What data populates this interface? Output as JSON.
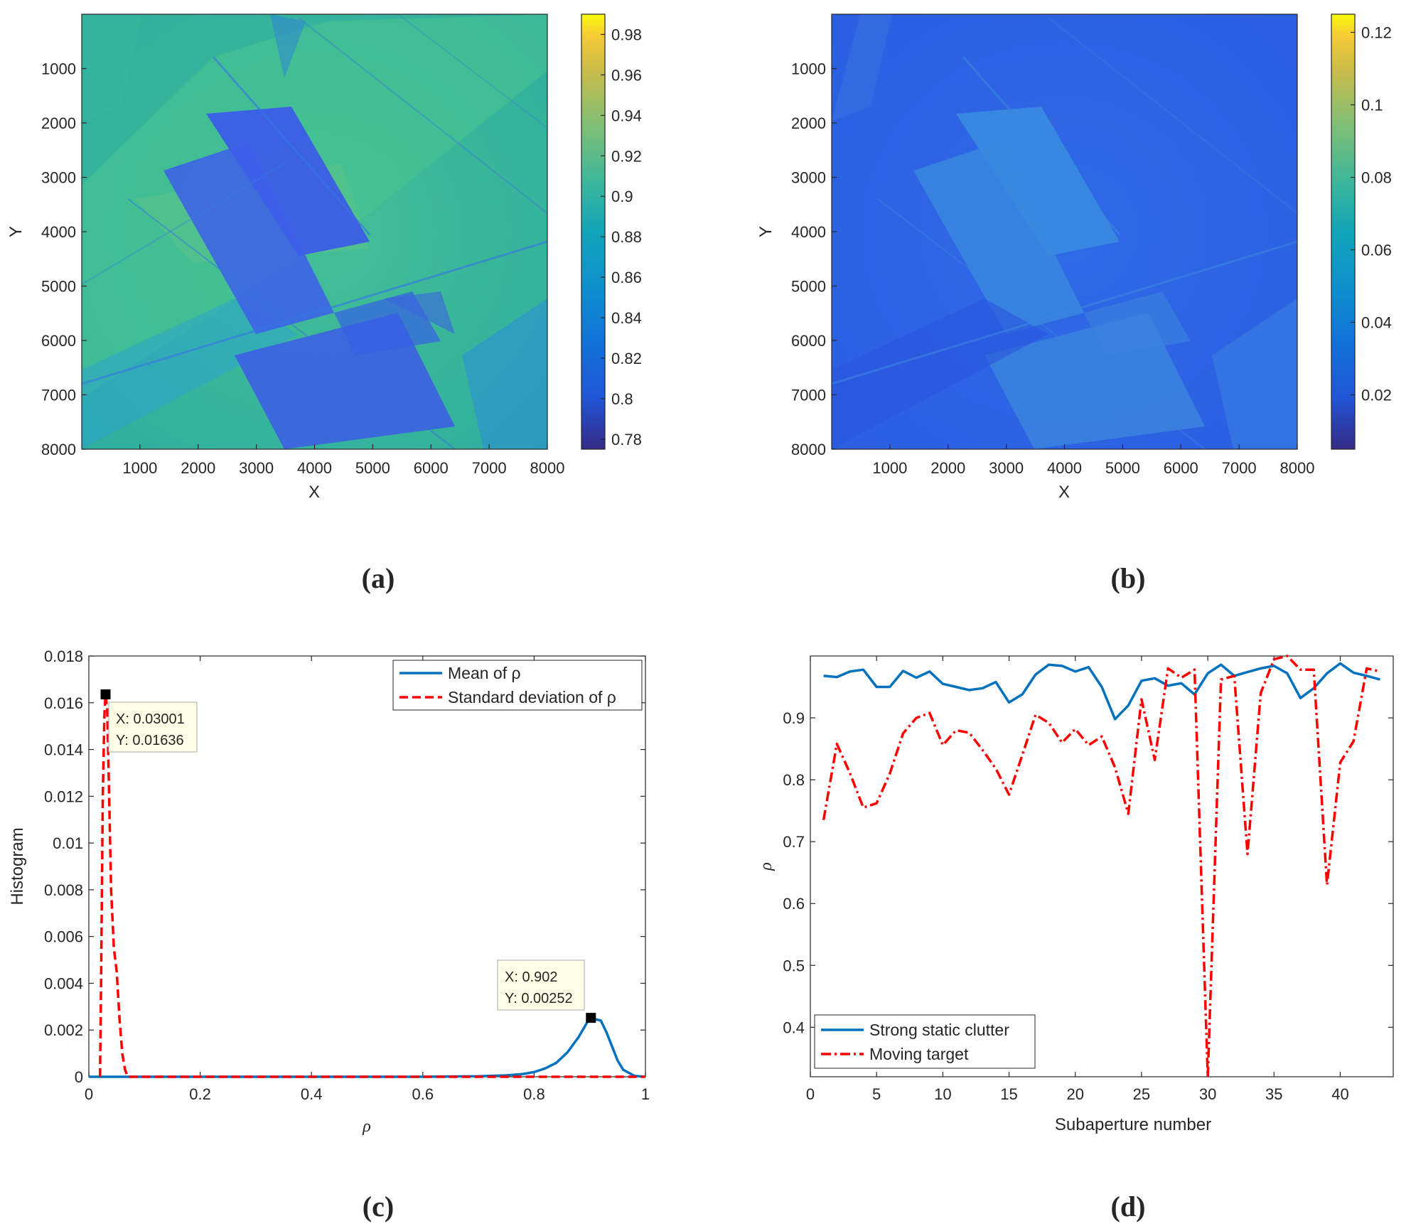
{
  "chart_data": [
    {
      "panel": "a",
      "type": "heatmap",
      "caption": "(a)",
      "xlabel": "X",
      "ylabel": "Y",
      "xlim": [
        0,
        8000
      ],
      "ylim": [
        0,
        8000
      ],
      "x_ticks": [
        "1000",
        "2000",
        "3000",
        "4000",
        "5000",
        "6000",
        "7000",
        "8000"
      ],
      "y_ticks": [
        "1000",
        "2000",
        "3000",
        "4000",
        "5000",
        "6000",
        "7000",
        "8000"
      ],
      "colorbar": {
        "range": [
          0.775,
          0.99
        ],
        "ticks": [
          "0.78",
          "0.8",
          "0.82",
          "0.84",
          "0.86",
          "0.88",
          "0.9",
          "0.92",
          "0.94",
          "0.96",
          "0.98"
        ],
        "tick_values": [
          0.78,
          0.8,
          0.82,
          0.84,
          0.86,
          0.88,
          0.9,
          0.92,
          0.94,
          0.96,
          0.98
        ]
      },
      "dominant_color": "#3fbf9a",
      "field_color": "#3a5ee8"
    },
    {
      "panel": "b",
      "type": "heatmap",
      "caption": "(b)",
      "xlabel": "X",
      "ylabel": "Y",
      "xlim": [
        0,
        8000
      ],
      "ylim": [
        0,
        8000
      ],
      "x_ticks": [
        "1000",
        "2000",
        "3000",
        "4000",
        "5000",
        "6000",
        "7000",
        "8000"
      ],
      "y_ticks": [
        "1000",
        "2000",
        "3000",
        "4000",
        "5000",
        "6000",
        "7000",
        "8000"
      ],
      "colorbar": {
        "range": [
          0.005,
          0.125
        ],
        "ticks": [
          "0.02",
          "0.04",
          "0.06",
          "0.08",
          "0.1",
          "0.12"
        ],
        "tick_values": [
          0.02,
          0.04,
          0.06,
          0.08,
          0.1,
          0.12
        ]
      },
      "dominant_color": "#2f63e6",
      "field_color": "#3a8ae0"
    },
    {
      "panel": "c",
      "type": "line",
      "caption": "(c)",
      "xlabel": "ρ",
      "ylabel": "Histogram",
      "xlim": [
        0,
        1
      ],
      "ylim": [
        0,
        0.018
      ],
      "x_ticks": [
        "0",
        "0.2",
        "0.4",
        "0.6",
        "0.8",
        "1"
      ],
      "y_ticks": [
        "0",
        "0.002",
        "0.004",
        "0.006",
        "0.008",
        "0.01",
        "0.012",
        "0.014",
        "0.016",
        "0.018"
      ],
      "legend": [
        "Mean of ρ",
        "Standard deviation of ρ"
      ],
      "legend_position": "top-right",
      "series": [
        {
          "name": "Mean of ρ",
          "color": "#0072bd",
          "style": "solid",
          "x": [
            0,
            0.6,
            0.7,
            0.75,
            0.78,
            0.8,
            0.82,
            0.84,
            0.86,
            0.88,
            0.9,
            0.92,
            0.93,
            0.94,
            0.95,
            0.96,
            0.98,
            1.0
          ],
          "y": [
            0,
            0,
            2e-05,
            6e-05,
            0.00012,
            0.0002,
            0.00036,
            0.0006,
            0.00105,
            0.0017,
            0.00252,
            0.0024,
            0.0019,
            0.0013,
            0.0007,
            0.0003,
            4e-05,
            0
          ]
        },
        {
          "name": "Standard deviation of ρ",
          "color": "#ff0000",
          "style": "dashed",
          "x": [
            0.02,
            0.022,
            0.025,
            0.028,
            0.03,
            0.033,
            0.036,
            0.04,
            0.045,
            0.05,
            0.055,
            0.06,
            0.065,
            0.07,
            0.2,
            0.6,
            0.9,
            1.0
          ],
          "y": [
            0,
            0.004,
            0.012,
            0.0155,
            0.01636,
            0.0157,
            0.0125,
            0.008,
            0.0055,
            0.0045,
            0.0025,
            0.001,
            0.0003,
            0,
            0,
            0,
            0,
            0
          ]
        }
      ],
      "annotations": [
        {
          "x": 0.03001,
          "y": 0.01636,
          "label_x": "X: 0.03001",
          "label_y": "Y: 0.01636"
        },
        {
          "x": 0.902,
          "y": 0.00252,
          "label_x": "X: 0.902",
          "label_y": "Y: 0.00252"
        }
      ]
    },
    {
      "panel": "d",
      "type": "line",
      "caption": "(d)",
      "xlabel": "Subaperture number",
      "ylabel": "ρ",
      "xlim": [
        0,
        44
      ],
      "ylim": [
        0.32,
        1.0
      ],
      "x_ticks": [
        "0",
        "5",
        "10",
        "15",
        "20",
        "25",
        "30",
        "35",
        "40"
      ],
      "y_ticks": [
        "0.4",
        "0.5",
        "0.6",
        "0.7",
        "0.8",
        "0.9"
      ],
      "legend": [
        "Strong static clutter",
        "Moving target"
      ],
      "legend_position": "bottom-left",
      "series": [
        {
          "name": "Strong static clutter",
          "color": "#0072bd",
          "style": "solid",
          "x": [
            1,
            2,
            3,
            4,
            5,
            6,
            7,
            8,
            9,
            10,
            11,
            12,
            13,
            14,
            15,
            16,
            17,
            18,
            19,
            20,
            21,
            22,
            23,
            24,
            25,
            26,
            27,
            28,
            29,
            30,
            31,
            32,
            33,
            34,
            35,
            36,
            37,
            38,
            39,
            40,
            41,
            42,
            43
          ],
          "y": [
            0.968,
            0.966,
            0.975,
            0.978,
            0.95,
            0.95,
            0.976,
            0.965,
            0.975,
            0.955,
            0.95,
            0.945,
            0.948,
            0.958,
            0.925,
            0.938,
            0.97,
            0.986,
            0.984,
            0.975,
            0.982,
            0.95,
            0.898,
            0.92,
            0.96,
            0.964,
            0.952,
            0.956,
            0.938,
            0.972,
            0.986,
            0.968,
            0.974,
            0.98,
            0.984,
            0.972,
            0.932,
            0.948,
            0.972,
            0.988,
            0.973,
            0.968,
            0.962
          ]
        },
        {
          "name": "Moving target",
          "color": "#ff0000",
          "style": "dashdot",
          "x": [
            1,
            2,
            3,
            4,
            5,
            6,
            7,
            8,
            9,
            10,
            11,
            12,
            13,
            14,
            15,
            16,
            17,
            18,
            19,
            20,
            21,
            22,
            23,
            24,
            25,
            26,
            27,
            28,
            29,
            30,
            31,
            32,
            33,
            34,
            35,
            36,
            37,
            38,
            39,
            40,
            41,
            42,
            43
          ],
          "y": [
            0.735,
            0.858,
            0.81,
            0.755,
            0.762,
            0.81,
            0.875,
            0.9,
            0.908,
            0.856,
            0.88,
            0.876,
            0.848,
            0.818,
            0.776,
            0.84,
            0.905,
            0.892,
            0.86,
            0.882,
            0.856,
            0.87,
            0.82,
            0.745,
            0.93,
            0.832,
            0.98,
            0.965,
            0.978,
            0.32,
            0.962,
            0.968,
            0.68,
            0.94,
            0.995,
            1.0,
            0.978,
            0.978,
            0.63,
            0.828,
            0.862,
            0.98,
            0.975
          ]
        }
      ]
    }
  ]
}
